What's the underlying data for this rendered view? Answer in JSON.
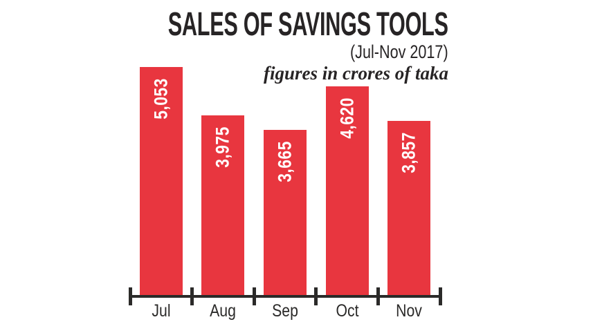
{
  "chart_data": {
    "type": "bar",
    "title": "SALES OF SAVINGS TOOLS",
    "subtitle": "(Jul-Nov 2017)",
    "note": "figures in crores of taka",
    "categories": [
      "Jul",
      "Aug",
      "Sep",
      "Oct",
      "Nov"
    ],
    "values": [
      5053,
      3975,
      3665,
      4620,
      3857
    ],
    "value_labels": [
      "5,053",
      "3,975",
      "3,665",
      "4,620",
      "3,857"
    ],
    "ylim": [
      0,
      5053
    ],
    "grid": false,
    "legend": false,
    "value_label_rotation": -90,
    "bar_color": "#e8363f",
    "value_label_color": "#ffffff",
    "axis_color": "#2b2a29",
    "text_color": "#272425",
    "background": "#ffffff"
  }
}
